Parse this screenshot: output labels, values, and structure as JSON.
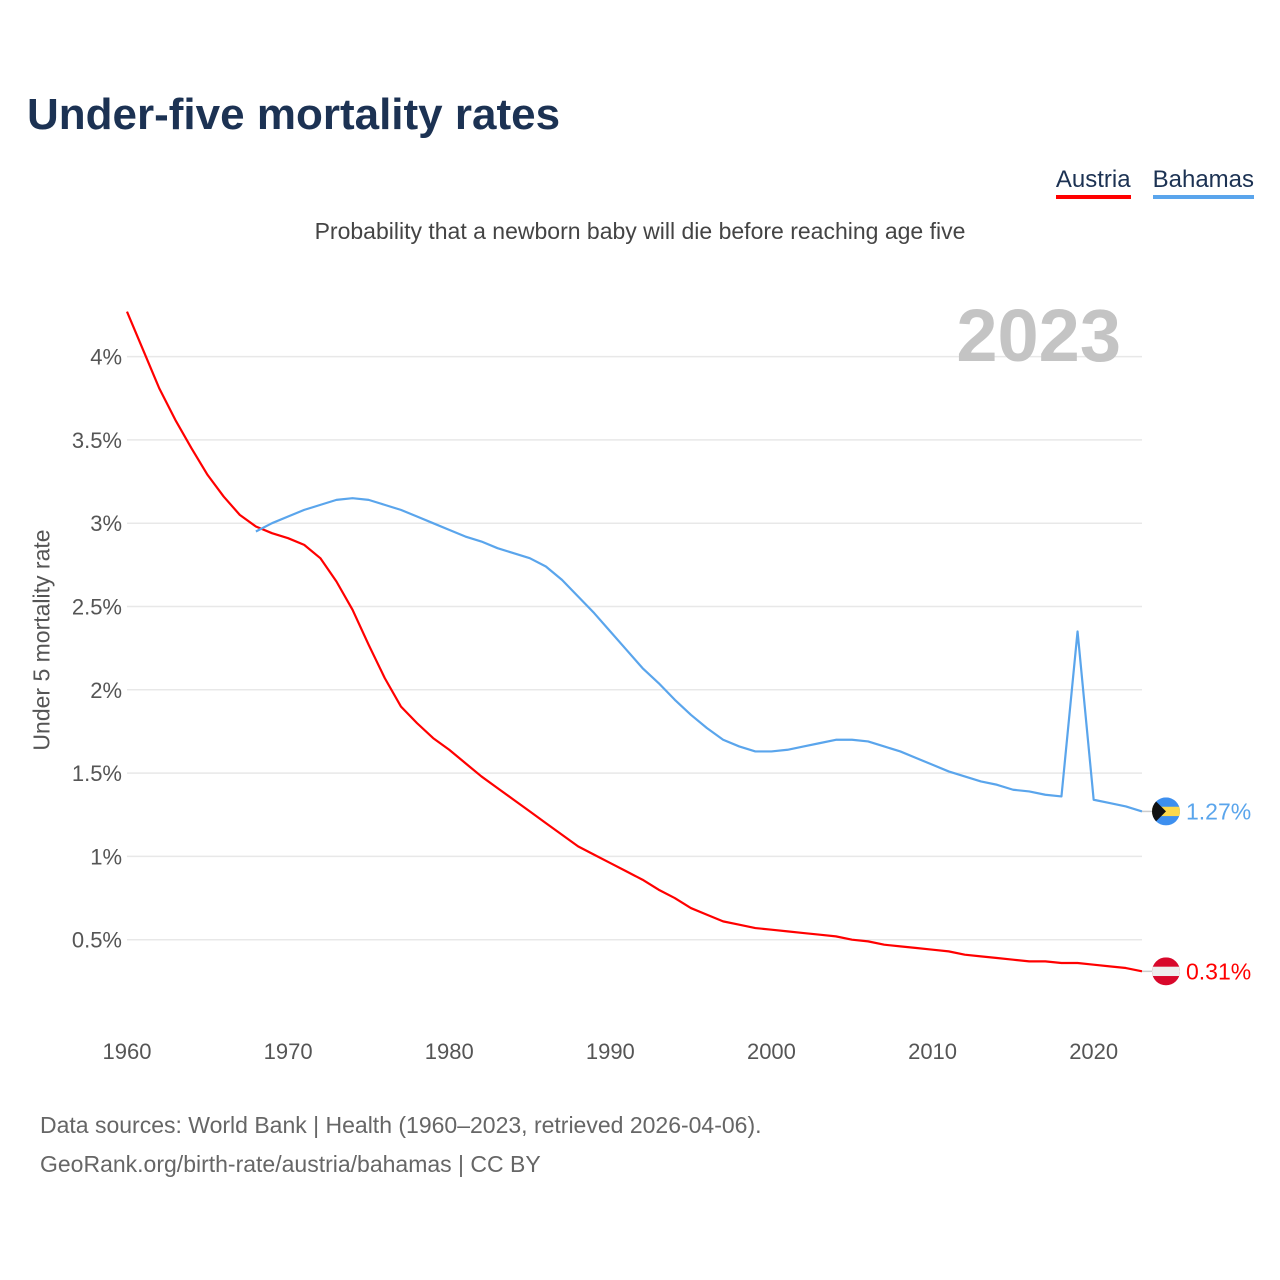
{
  "title": "Under-five mortality rates",
  "subtitle": "Probability that a newborn baby will die before reaching age five",
  "legend": [
    {
      "label": "Austria",
      "color": "#ff0000"
    },
    {
      "label": "Bahamas",
      "color": "#5aa5ec"
    }
  ],
  "year_label": "2023",
  "source_line1": "Data sources: World Bank | Health (1960–2023, retrieved 2026-04-06).",
  "source_line2": "GeoRank.org/birth-rate/austria/bahamas | CC BY",
  "chart_data": {
    "type": "line",
    "title": "Under-five mortality rates",
    "ylabel": "Under 5 mortality rate",
    "xlabel": "",
    "xlim": [
      1960,
      2023
    ],
    "ylim": [
      0,
      4.4
    ],
    "x_ticks": [
      "1960",
      "1970",
      "1980",
      "1990",
      "2000",
      "2010",
      "2020"
    ],
    "y_ticks": [
      "0.5%",
      "1%",
      "1.5%",
      "2%",
      "2.5%",
      "3%",
      "3.5%",
      "4%"
    ],
    "grid": true,
    "series": [
      {
        "name": "Austria",
        "color": "#ff0000",
        "end_label": "0.31%",
        "start_year": 1960,
        "values": [
          4.27,
          4.04,
          3.81,
          3.62,
          3.45,
          3.29,
          3.16,
          3.05,
          2.98,
          2.94,
          2.91,
          2.87,
          2.79,
          2.65,
          2.48,
          2.27,
          2.07,
          1.9,
          1.8,
          1.71,
          1.64,
          1.56,
          1.48,
          1.41,
          1.34,
          1.27,
          1.2,
          1.13,
          1.06,
          1.01,
          0.96,
          0.91,
          0.86,
          0.8,
          0.75,
          0.69,
          0.65,
          0.61,
          0.59,
          0.57,
          0.56,
          0.55,
          0.54,
          0.53,
          0.52,
          0.5,
          0.49,
          0.47,
          0.46,
          0.45,
          0.44,
          0.43,
          0.41,
          0.4,
          0.39,
          0.38,
          0.37,
          0.37,
          0.36,
          0.36,
          0.35,
          0.34,
          0.33,
          0.31
        ]
      },
      {
        "name": "Bahamas",
        "color": "#5aa5ec",
        "end_label": "1.27%",
        "start_year": 1968,
        "values": [
          2.95,
          3.0,
          3.04,
          3.08,
          3.11,
          3.14,
          3.15,
          3.14,
          3.11,
          3.08,
          3.04,
          3.0,
          2.96,
          2.92,
          2.89,
          2.85,
          2.82,
          2.79,
          2.74,
          2.66,
          2.56,
          2.46,
          2.35,
          2.24,
          2.13,
          2.04,
          1.94,
          1.85,
          1.77,
          1.7,
          1.66,
          1.63,
          1.63,
          1.64,
          1.66,
          1.68,
          1.7,
          1.7,
          1.69,
          1.66,
          1.63,
          1.59,
          1.55,
          1.51,
          1.48,
          1.45,
          1.43,
          1.4,
          1.39,
          1.37,
          1.36,
          2.35,
          1.34,
          1.32,
          1.3,
          1.27
        ]
      }
    ]
  }
}
